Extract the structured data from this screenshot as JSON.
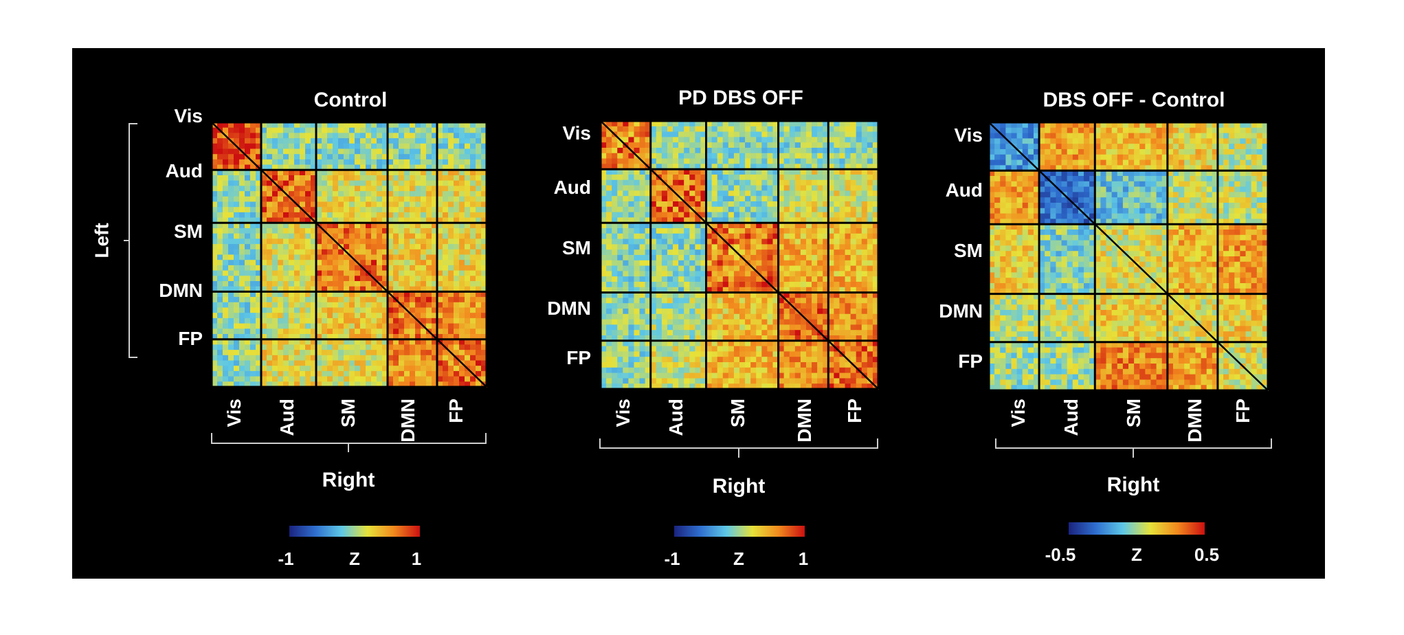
{
  "figure": {
    "side_label": "Left",
    "networks": [
      "Vis",
      "Aud",
      "SM",
      "DMN",
      "FP"
    ],
    "network_sizes": [
      9,
      10,
      13,
      9,
      9
    ],
    "colormap": "jet",
    "background": "#000000"
  },
  "chart_data": [
    {
      "type": "heatmap",
      "title": "Control",
      "y_categories": [
        "Vis",
        "Aud",
        "SM",
        "DMN",
        "FP"
      ],
      "x_categories": [
        "Vis",
        "Aud",
        "SM",
        "DMN",
        "FP"
      ],
      "ylabel": "Left",
      "xlabel": "Right",
      "colorbar": {
        "label": "Z",
        "min": -1,
        "max": 1,
        "min_label": "-1",
        "max_label": "1"
      },
      "block_means": [
        [
          0.75,
          -0.05,
          -0.05,
          -0.05,
          -0.05
        ],
        [
          -0.05,
          0.65,
          0.2,
          0.2,
          0.25
        ],
        [
          -0.05,
          0.2,
          0.55,
          0.3,
          0.25
        ],
        [
          -0.05,
          0.15,
          0.3,
          0.6,
          0.55
        ],
        [
          -0.05,
          0.25,
          0.2,
          0.55,
          0.6
        ]
      ]
    },
    {
      "type": "heatmap",
      "title": "PD DBS OFF",
      "y_categories": [
        "Vis",
        "Aud",
        "SM",
        "DMN",
        "FP"
      ],
      "x_categories": [
        "Vis",
        "Aud",
        "SM",
        "DMN",
        "FP"
      ],
      "xlabel": "Right",
      "colorbar": {
        "label": "Z",
        "min": -1,
        "max": 1,
        "min_label": "-1",
        "max_label": "1"
      },
      "block_means": [
        [
          0.55,
          0.0,
          -0.05,
          -0.05,
          -0.05
        ],
        [
          0.0,
          0.6,
          -0.05,
          0.2,
          0.2
        ],
        [
          -0.05,
          -0.05,
          0.55,
          0.4,
          0.4
        ],
        [
          -0.05,
          0.05,
          0.35,
          0.65,
          0.55
        ],
        [
          -0.05,
          0.15,
          0.4,
          0.55,
          0.65
        ]
      ]
    },
    {
      "type": "heatmap",
      "title": "DBS OFF - Control",
      "y_categories": [
        "Vis",
        "Aud",
        "SM",
        "DMN",
        "FP"
      ],
      "x_categories": [
        "Vis",
        "Aud",
        "SM",
        "DMN",
        "FP"
      ],
      "xlabel": "Right",
      "colorbar": {
        "label": "Z",
        "min": -0.5,
        "max": 0.5,
        "min_label": "-0.5",
        "max_label": "0.5"
      },
      "block_means": [
        [
          -0.2,
          0.25,
          0.2,
          0.15,
          0.05
        ],
        [
          0.25,
          -0.3,
          -0.1,
          0.05,
          0.05
        ],
        [
          0.15,
          -0.05,
          0.1,
          0.2,
          0.25
        ],
        [
          0.05,
          0.05,
          0.15,
          0.1,
          0.15
        ],
        [
          0.0,
          0.0,
          0.3,
          0.25,
          0.1
        ]
      ]
    }
  ]
}
